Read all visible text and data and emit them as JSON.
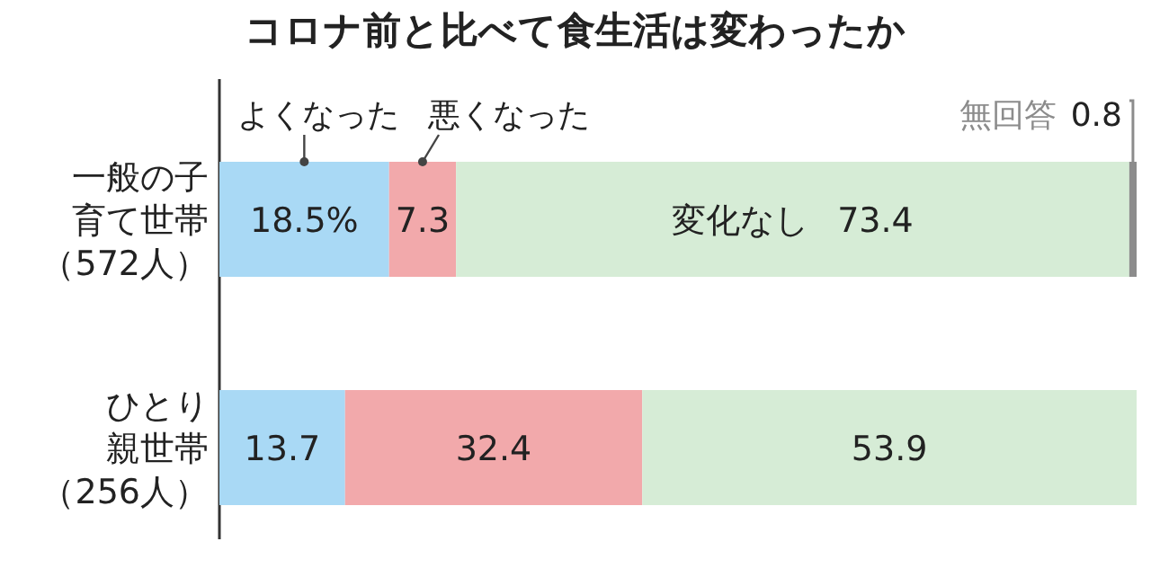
{
  "chart_data": {
    "type": "bar",
    "orientation": "horizontal",
    "stacked": true,
    "title": "コロナ前と比べて食生活は変わったか",
    "categories": [
      "一般の子育て世帯（572人）",
      "ひとり親世帯（256人）"
    ],
    "xlim": [
      0,
      100
    ],
    "legend": false,
    "series": [
      {
        "name": "よくなった",
        "color": "#a9d9f5",
        "values": [
          18.5,
          13.7
        ],
        "value_labels": [
          "18.5%",
          "13.7"
        ]
      },
      {
        "name": "悪くなった",
        "color": "#f2a9ab",
        "values": [
          7.3,
          32.4
        ],
        "value_labels": [
          "7.3",
          "32.4"
        ]
      },
      {
        "name": "変化なし",
        "color": "#d6ecd6",
        "values": [
          73.4,
          53.9
        ],
        "value_labels": [
          "73.4",
          "53.9"
        ]
      },
      {
        "name": "無回答",
        "color": "#8c8c8c",
        "values": [
          0.8,
          null
        ],
        "value_labels": [
          "0.8",
          null
        ]
      }
    ]
  }
}
